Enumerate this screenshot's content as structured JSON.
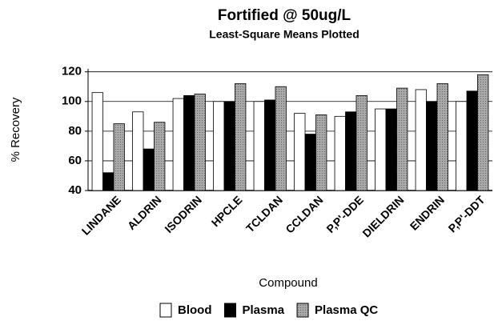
{
  "chart_data": {
    "type": "bar",
    "title": "Fortified @ 50ug/L",
    "subtitle": "Least-Square Means Plotted",
    "x_label": "Compound",
    "y_label": "% Recovery",
    "categories": [
      "LINDANE",
      "ALDRIN",
      "ISODRIN",
      "HPCLE",
      "TCLDAN",
      "CCLDAN",
      "P,P'-DDE",
      "DIELDRIN",
      "ENDRIN",
      "P,P'-DDT"
    ],
    "series": [
      {
        "name": "Blood",
        "color": "#ffffff",
        "values": [
          106,
          93,
          102,
          100,
          100,
          92,
          90,
          95,
          108,
          100
        ]
      },
      {
        "name": "Plasma",
        "color": "#000000",
        "values": [
          52,
          68,
          104,
          100,
          101,
          78,
          93,
          95,
          100,
          107
        ]
      },
      {
        "name": "Plasma QC",
        "color": "#a8a8a8",
        "values": [
          85,
          86,
          105,
          112,
          110,
          91,
          104,
          109,
          112,
          118
        ]
      }
    ],
    "ylim": [
      40,
      122
    ],
    "yticks": [
      40,
      60,
      80,
      100,
      120
    ],
    "grid": true,
    "legend": "bottom"
  }
}
